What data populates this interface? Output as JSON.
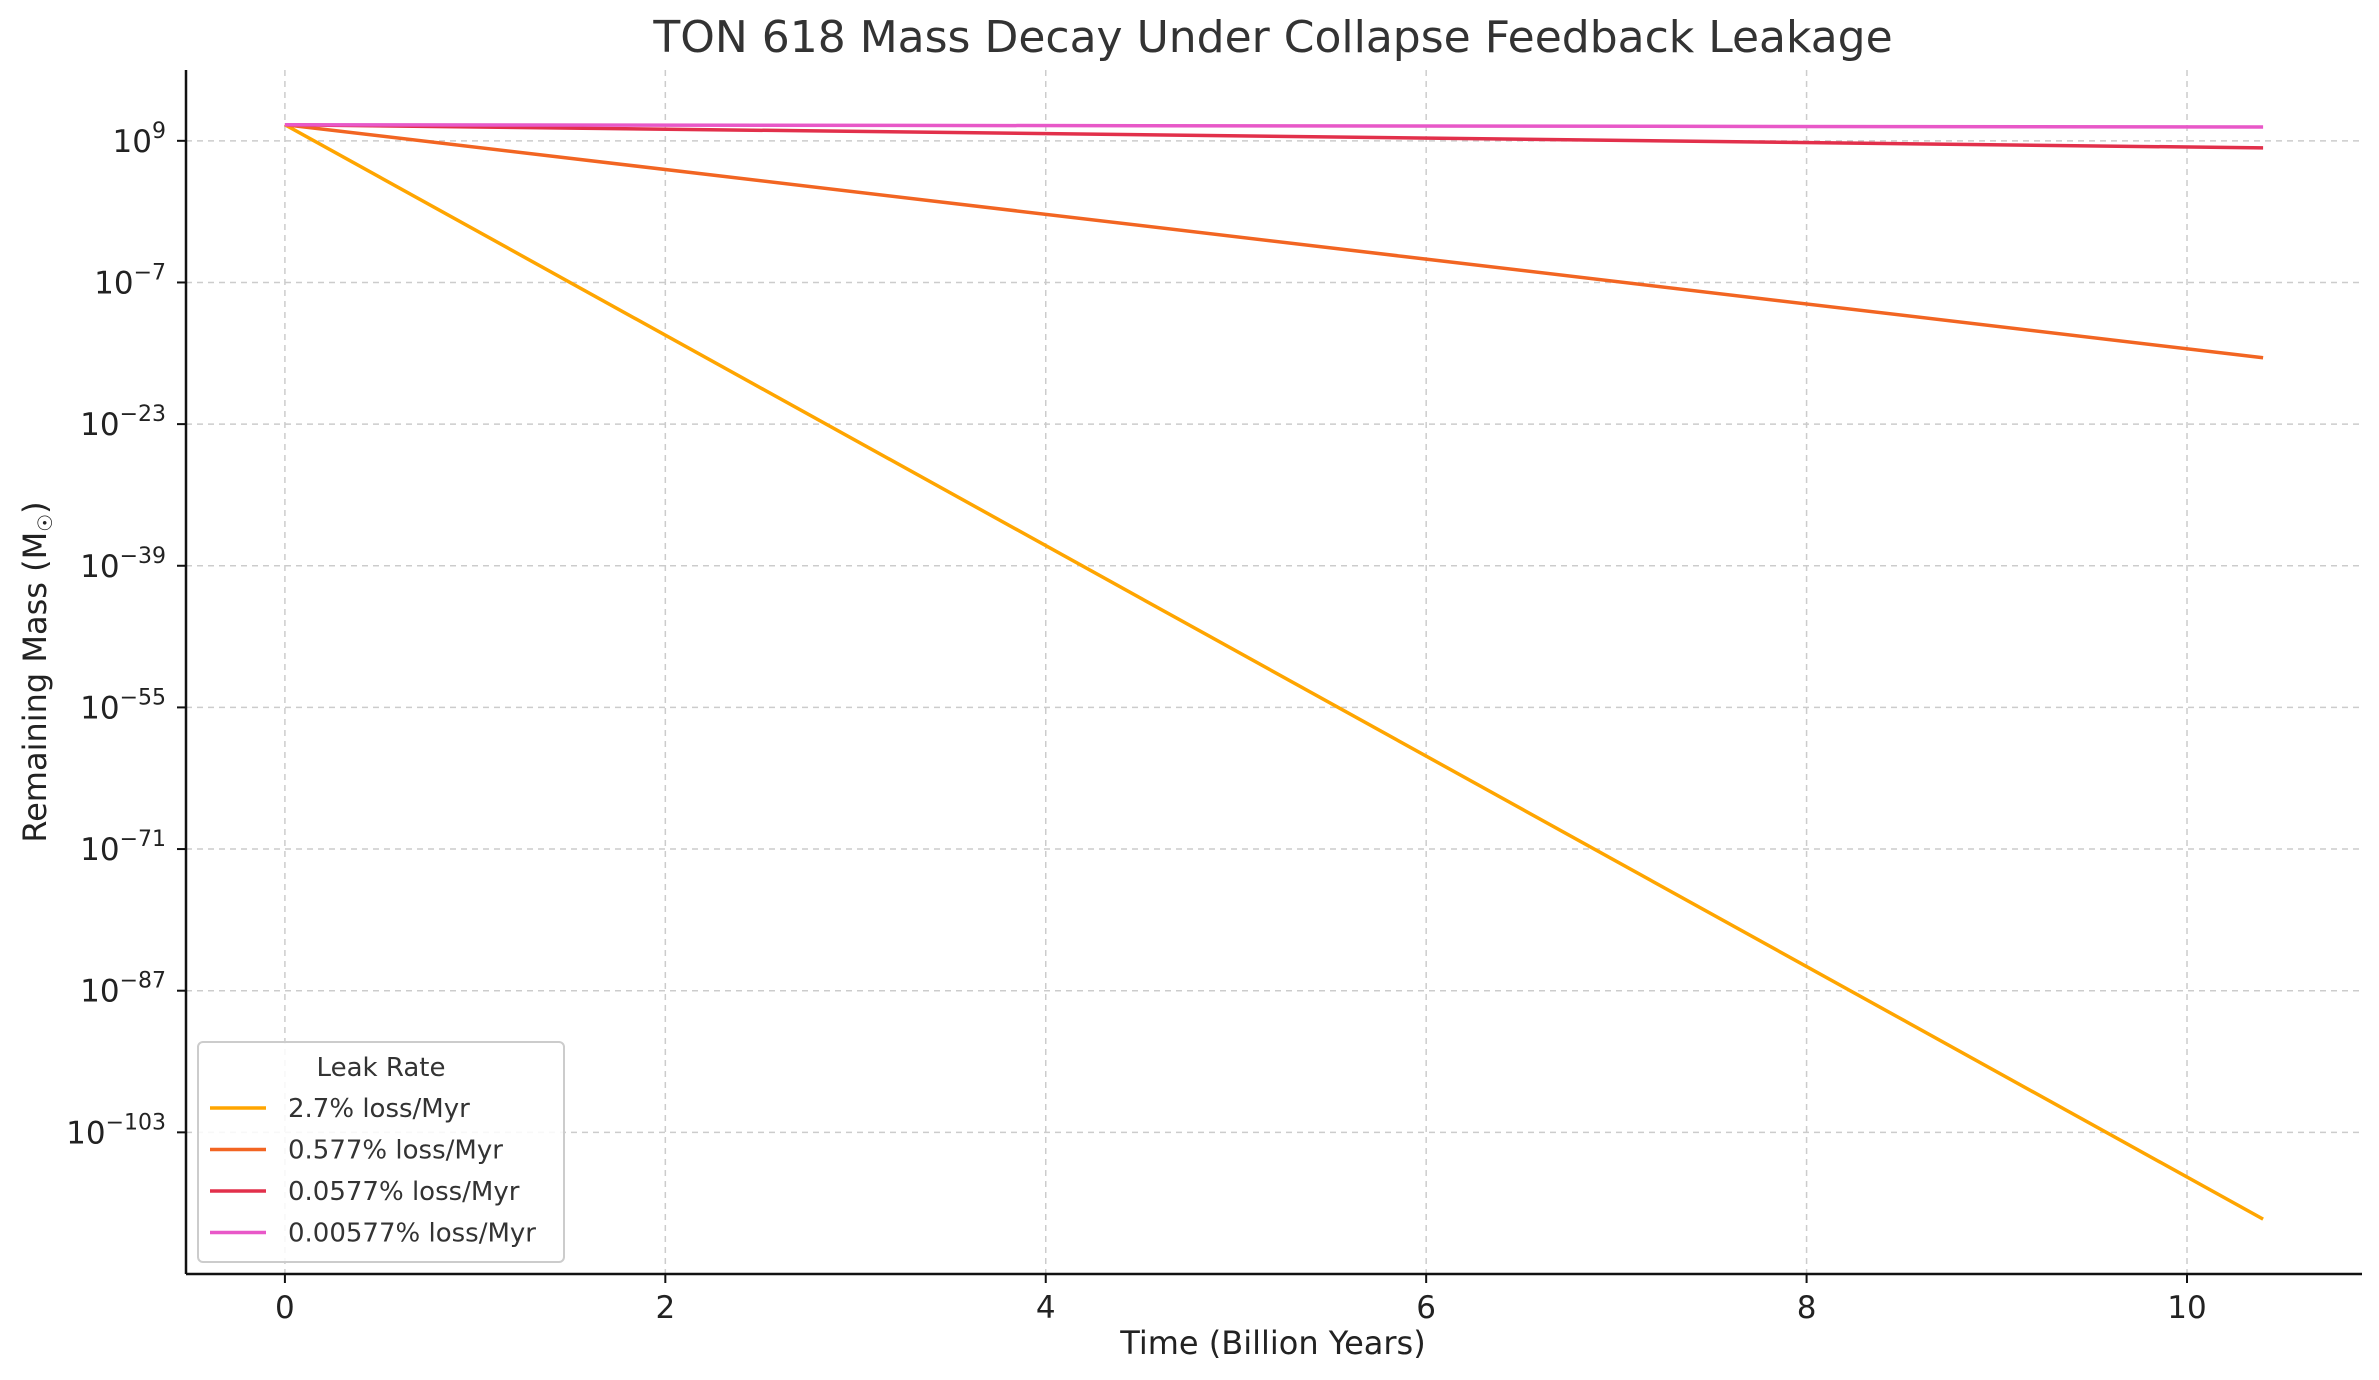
{
  "chart_data": {
    "type": "line",
    "title": "TON 618 Mass Decay Under Collapse Feedback Leakage",
    "xlabel": "Time (Billion Years)",
    "ylabel": "Remaining Mass (M",
    "ylabel_symbol": "☉",
    "ylabel_close": ")",
    "yscale": "log",
    "xlim": [
      -0.52,
      10.92
    ],
    "ylim_exponent": [
      -119,
      17
    ],
    "x_ticks": [
      0,
      2,
      4,
      6,
      8,
      10
    ],
    "x_tick_labels": [
      "0",
      "2",
      "4",
      "6",
      "8",
      "10"
    ],
    "y_ticks_exponent": [
      9,
      -7,
      -23,
      -39,
      -55,
      -71,
      -87,
      -103
    ],
    "y_tick_base": "10",
    "y_tick_exponent_labels": [
      "9",
      "−7",
      "−23",
      "−39",
      "−55",
      "−71",
      "−87",
      "−103"
    ],
    "grid": true,
    "legend": {
      "title": "Leak Rate",
      "position": "lower-left"
    },
    "x": [
      0,
      10.4
    ],
    "series": [
      {
        "name": "2.7% loss/Myr",
        "color": "#FFA500",
        "log10_values": [
          10.82,
          -112.8
        ]
      },
      {
        "name": "0.577% loss/Myr",
        "color": "#F26522",
        "log10_values": [
          10.82,
          -15.5
        ]
      },
      {
        "name": "0.0577% loss/Myr",
        "color": "#E2304B",
        "log10_values": [
          10.82,
          8.2
        ]
      },
      {
        "name": "0.00577% loss/Myr",
        "color": "#E858C8",
        "log10_values": [
          10.82,
          10.56
        ]
      }
    ]
  }
}
